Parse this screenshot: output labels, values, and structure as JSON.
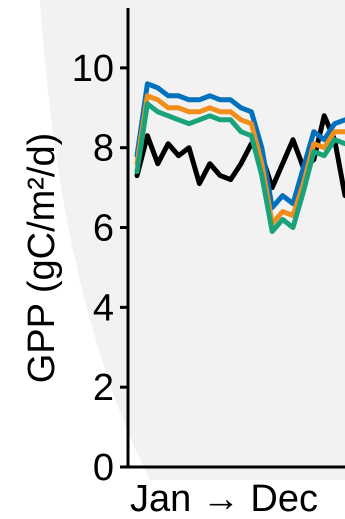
{
  "chart_data": {
    "type": "line",
    "title": "",
    "xlabel": "Jan → Dec",
    "ylabel": "GPP (gC/m²/d)",
    "ylim": [
      0,
      11.5
    ],
    "yticks": [
      0,
      2,
      4,
      6,
      8,
      10
    ],
    "grid": false,
    "x": [
      1,
      2,
      3,
      4,
      5,
      6,
      7,
      8,
      9,
      10,
      11,
      12,
      13,
      14,
      15,
      16,
      17,
      18,
      19,
      20,
      21
    ],
    "series": [
      {
        "color": "#000000",
        "values": [
          7.3,
          8.3,
          7.6,
          8.1,
          7.8,
          8.0,
          7.1,
          7.6,
          7.3,
          7.2,
          7.6,
          8.1,
          7.8,
          7.0,
          7.6,
          8.2,
          7.5,
          7.7,
          8.8,
          8.2,
          6.8
        ]
      },
      {
        "color": "#0072bd",
        "values": [
          7.8,
          9.6,
          9.5,
          9.3,
          9.3,
          9.2,
          9.2,
          9.3,
          9.2,
          9.2,
          9.0,
          8.9,
          8.0,
          6.5,
          6.8,
          6.6,
          7.5,
          8.4,
          8.2,
          8.6,
          8.7
        ]
      },
      {
        "color": "#f28e1c",
        "values": [
          7.6,
          9.3,
          9.2,
          9.0,
          9.0,
          8.9,
          8.9,
          9.0,
          8.9,
          8.9,
          8.7,
          8.6,
          7.6,
          6.1,
          6.4,
          6.3,
          7.1,
          8.1,
          8.0,
          8.4,
          8.4
        ]
      },
      {
        "color": "#1aa37a",
        "values": [
          7.4,
          9.1,
          8.9,
          8.8,
          8.7,
          8.6,
          8.7,
          8.8,
          8.7,
          8.7,
          8.4,
          8.3,
          7.3,
          5.9,
          6.2,
          6.0,
          6.9,
          7.9,
          7.8,
          8.2,
          8.1
        ]
      }
    ]
  }
}
